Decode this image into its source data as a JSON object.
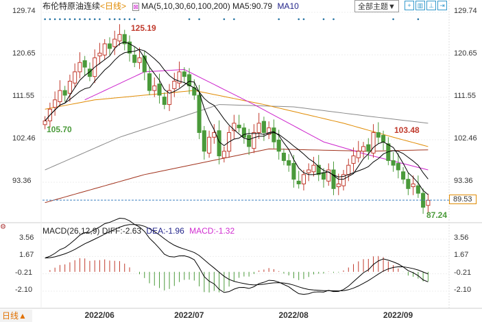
{
  "header": {
    "title": "布伦特原油连续",
    "period": "<日线>",
    "ma_label": "MA(5,10,30,60,100,200)",
    "ma5": "MA5:90.79",
    "ma10": "MA10",
    "theme_button": "全部主题▼"
  },
  "macd_header": {
    "label": "MACD(26,12,9)",
    "diff": "DIFF:-2.63",
    "dea": "DEA:-1.96",
    "macd": "MACD:-1.32"
  },
  "footer": {
    "period_button": "日线▲"
  },
  "colors": {
    "up": "#c0392b",
    "down": "#4a9a3a",
    "ma5": "#000000",
    "ma10": "#000000",
    "ma30": "#cc22cc",
    "ma60": "#e08a00",
    "ma100": "#888888",
    "ma200": "#a0301a"
  },
  "chart_data": {
    "type": "candlestick",
    "price_ticks": [
      "129.74",
      "120.65",
      "111.55",
      "102.46",
      "93.36"
    ],
    "price_tick_values": [
      129.74,
      120.65,
      111.55,
      102.46,
      93.36
    ],
    "macd_ticks": [
      "3.56",
      "1.67",
      "-0.21",
      "-2.10"
    ],
    "macd_tick_values": [
      3.56,
      1.67,
      -0.21,
      -2.1
    ],
    "x_labels": [
      {
        "label": "2022/06",
        "index": 11
      },
      {
        "label": "2022/07",
        "index": 29
      },
      {
        "label": "2022/08",
        "index": 50
      },
      {
        "label": "2022/09",
        "index": 71
      }
    ],
    "annotations": {
      "high": "125.19",
      "high_index": 16,
      "low_start": "105.70",
      "recent_high": "103.48",
      "recent_high_index": 69,
      "low": "87.24",
      "current": "89.53"
    },
    "closes": [
      106.5,
      109,
      111,
      113,
      112,
      115,
      117,
      119,
      118,
      116,
      120,
      121,
      123,
      122,
      124,
      125,
      123,
      121,
      119,
      120,
      117,
      113,
      114,
      112,
      110,
      113,
      115,
      117,
      116,
      114,
      112,
      104,
      100,
      103,
      104,
      99,
      100,
      104,
      106,
      105,
      103,
      101,
      104,
      106,
      104,
      105,
      102,
      100,
      98,
      97,
      94,
      93,
      95,
      96,
      97,
      95,
      94,
      96,
      92,
      93,
      95,
      97,
      99,
      100,
      101,
      100,
      104,
      103,
      102,
      98,
      97,
      96,
      94,
      92,
      93,
      91,
      88,
      89.5
    ],
    "ma_long": {
      "ma30": [
        [
          8,
          111
        ],
        [
          20,
          117
        ],
        [
          28,
          117.5
        ],
        [
          42,
          110
        ],
        [
          56,
          102
        ],
        [
          64,
          99.5
        ],
        [
          77,
          96
        ]
      ],
      "ma60": [
        [
          0,
          109
        ],
        [
          10,
          111
        ],
        [
          30,
          113
        ],
        [
          44,
          110
        ],
        [
          60,
          106
        ],
        [
          70,
          103
        ],
        [
          77,
          101
        ]
      ],
      "ma100": [
        [
          0,
          96
        ],
        [
          15,
          103
        ],
        [
          35,
          110
        ],
        [
          50,
          109.5
        ],
        [
          65,
          107.5
        ],
        [
          77,
          106
        ]
      ],
      "ma200": [
        [
          0,
          89
        ],
        [
          20,
          95
        ],
        [
          45,
          100.5
        ],
        [
          65,
          100
        ],
        [
          77,
          100.3
        ]
      ]
    },
    "marker_indices": [
      0,
      1,
      2,
      3,
      4,
      5,
      6,
      7,
      8,
      9,
      10,
      11,
      13,
      14,
      15,
      16,
      17,
      18,
      29,
      31,
      36,
      38,
      47,
      51,
      52,
      56,
      58,
      70,
      75
    ]
  }
}
